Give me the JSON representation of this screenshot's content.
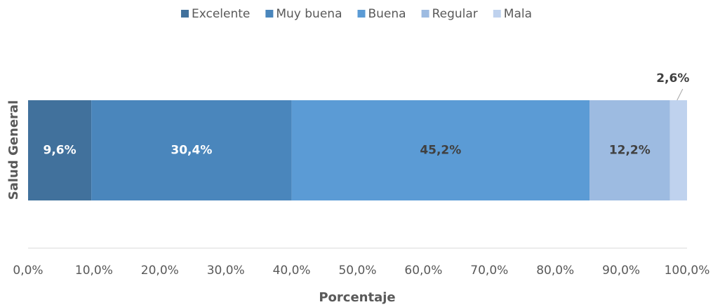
{
  "chart_data": {
    "type": "stacked_barh",
    "y_label": "Salud General",
    "x_label": "Porcentaje",
    "xlim": [
      0,
      100
    ],
    "xticks": [
      {
        "value": 0,
        "label": "0,0%"
      },
      {
        "value": 10,
        "label": "10,0%"
      },
      {
        "value": 20,
        "label": "20,0%"
      },
      {
        "value": 30,
        "label": "30,0%"
      },
      {
        "value": 40,
        "label": "40,0%"
      },
      {
        "value": 50,
        "label": "50,0%"
      },
      {
        "value": 60,
        "label": "60,0%"
      },
      {
        "value": 70,
        "label": "70,0%"
      },
      {
        "value": 80,
        "label": "80,0%"
      },
      {
        "value": 90,
        "label": "90,0%"
      },
      {
        "value": 100,
        "label": "100,0%"
      }
    ],
    "legend": "top",
    "series": [
      {
        "name": "Excelente",
        "color": "#41719c",
        "label_color": "#ffffff",
        "values": [
          9.6
        ],
        "value_labels": [
          "9,6%"
        ]
      },
      {
        "name": "Muy buena",
        "color": "#4a86bc",
        "label_color": "#ffffff",
        "values": [
          30.4
        ],
        "value_labels": [
          "30,4%"
        ]
      },
      {
        "name": "Buena",
        "color": "#5b9bd5",
        "label_color": "#404040",
        "values": [
          45.2
        ],
        "value_labels": [
          "45,2%"
        ]
      },
      {
        "name": "Regular",
        "color": "#9dbbe1",
        "label_color": "#404040",
        "values": [
          12.2
        ],
        "value_labels": [
          "12,2%"
        ]
      },
      {
        "name": "Mala",
        "color": "#bfd2ee",
        "label_color": "#404040",
        "values": [
          2.6
        ],
        "value_labels": [
          "2,6%"
        ]
      }
    ]
  }
}
